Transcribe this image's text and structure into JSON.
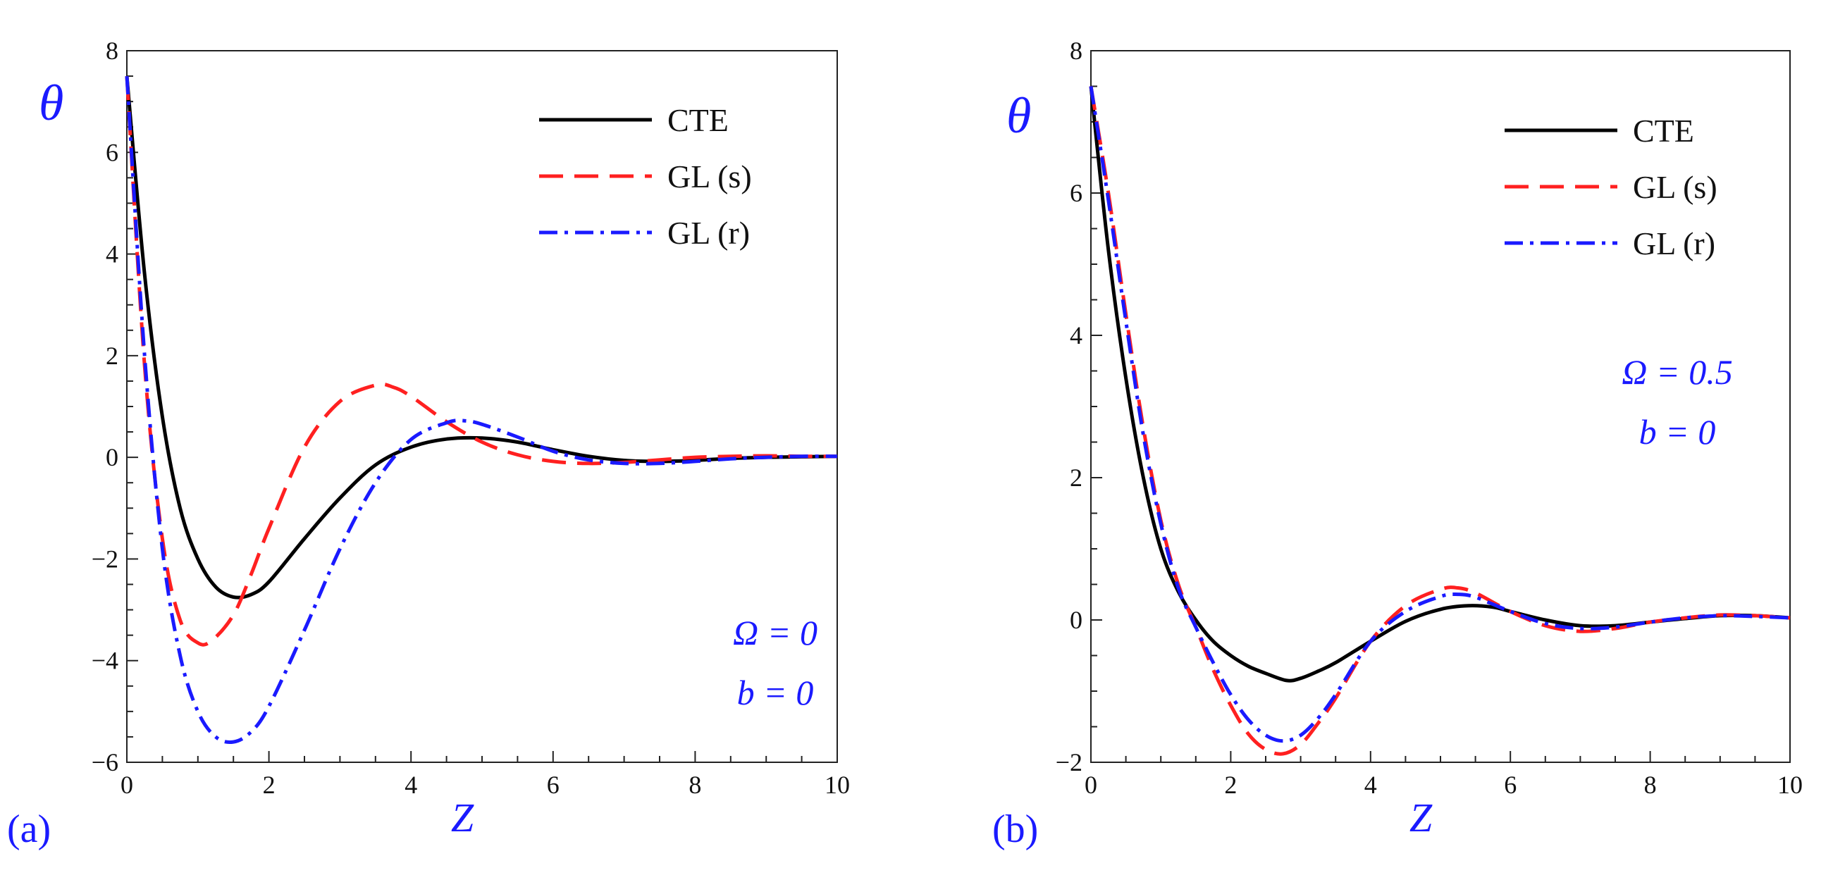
{
  "chart_data": [
    {
      "type": "line",
      "panel_label": "(a)",
      "xlabel": "Z",
      "ylabel": "θ",
      "xlim": [
        0,
        10
      ],
      "ylim": [
        -6,
        8
      ],
      "xticks": [
        "0",
        "2",
        "4",
        "6",
        "8",
        "10"
      ],
      "yticks": [
        "−6",
        "−4",
        "−2",
        "0",
        "2",
        "4",
        "6",
        "8"
      ],
      "legend_position": "top-right",
      "annotations": [
        "Ω = 0",
        "b = 0"
      ],
      "series": [
        {
          "name": "CTE",
          "color": "#000000",
          "style": "solid",
          "x": [
            0,
            0.25,
            0.5,
            0.75,
            1.0,
            1.25,
            1.5,
            1.75,
            2.0,
            2.5,
            3.0,
            3.5,
            4.0,
            4.5,
            5.0,
            5.5,
            6.0,
            6.5,
            7.0,
            7.5,
            8.0,
            8.5,
            9.0,
            9.5,
            10.0
          ],
          "y": [
            7.5,
            3.6,
            0.8,
            -1.0,
            -2.0,
            -2.55,
            -2.75,
            -2.7,
            -2.45,
            -1.6,
            -0.8,
            -0.15,
            0.2,
            0.36,
            0.38,
            0.3,
            0.15,
            0.02,
            -0.06,
            -0.08,
            -0.06,
            -0.02,
            0.0,
            0.01,
            0.02
          ]
        },
        {
          "name": "GL (s)",
          "color": "#ff2020",
          "style": "dashed",
          "x": [
            0,
            0.25,
            0.5,
            0.75,
            1.0,
            1.2,
            1.5,
            1.75,
            2.0,
            2.5,
            3.0,
            3.5,
            3.75,
            4.0,
            4.5,
            5.0,
            5.5,
            6.0,
            6.5,
            7.0,
            7.5,
            8.0,
            8.5,
            9.0,
            9.5,
            10.0
          ],
          "y": [
            7.5,
            1.8,
            -1.6,
            -3.2,
            -3.65,
            -3.6,
            -3.1,
            -2.3,
            -1.4,
            0.2,
            1.1,
            1.42,
            1.38,
            1.2,
            0.7,
            0.3,
            0.05,
            -0.08,
            -0.12,
            -0.1,
            -0.05,
            0.0,
            0.02,
            0.03,
            0.02,
            0.02
          ]
        },
        {
          "name": "GL (r)",
          "color": "#1a1aff",
          "style": "dashdot",
          "x": [
            0,
            0.25,
            0.5,
            0.75,
            1.0,
            1.25,
            1.5,
            1.75,
            2.0,
            2.5,
            3.0,
            3.5,
            4.0,
            4.5,
            4.75,
            5.0,
            5.5,
            6.0,
            6.5,
            7.0,
            7.5,
            8.0,
            8.5,
            9.0,
            9.5,
            10.0
          ],
          "y": [
            7.5,
            2.0,
            -1.8,
            -3.9,
            -5.0,
            -5.5,
            -5.6,
            -5.4,
            -4.9,
            -3.4,
            -1.8,
            -0.5,
            0.35,
            0.68,
            0.72,
            0.65,
            0.4,
            0.12,
            -0.05,
            -0.12,
            -0.12,
            -0.08,
            -0.03,
            0.0,
            0.02,
            0.02
          ]
        }
      ]
    },
    {
      "type": "line",
      "panel_label": "(b)",
      "xlabel": "Z",
      "ylabel": "θ",
      "xlim": [
        0,
        10
      ],
      "ylim": [
        -2,
        8
      ],
      "xticks": [
        "0",
        "2",
        "4",
        "6",
        "8",
        "10"
      ],
      "yticks": [
        "−2",
        "0",
        "2",
        "4",
        "6",
        "8"
      ],
      "legend_position": "top-right",
      "annotations": [
        "Ω = 0.5",
        "b = 0"
      ],
      "series": [
        {
          "name": "CTE",
          "color": "#000000",
          "style": "solid",
          "x": [
            0,
            0.25,
            0.5,
            0.75,
            1.0,
            1.25,
            1.5,
            1.75,
            2.0,
            2.25,
            2.5,
            2.8,
            3.0,
            3.25,
            3.5,
            4.0,
            4.5,
            5.0,
            5.4,
            5.75,
            6.0,
            6.5,
            7.0,
            7.5,
            8.0,
            8.5,
            9.0,
            9.5,
            10.0
          ],
          "y": [
            7.5,
            5.2,
            3.4,
            2.0,
            1.0,
            0.4,
            0.0,
            -0.3,
            -0.5,
            -0.65,
            -0.75,
            -0.85,
            -0.82,
            -0.72,
            -0.6,
            -0.3,
            -0.02,
            0.15,
            0.2,
            0.18,
            0.12,
            0.0,
            -0.08,
            -0.08,
            -0.03,
            0.02,
            0.06,
            0.06,
            0.03
          ]
        },
        {
          "name": "GL (s)",
          "color": "#ff2020",
          "style": "dashed",
          "x": [
            0,
            0.25,
            0.5,
            0.75,
            1.0,
            1.25,
            1.5,
            1.75,
            2.0,
            2.25,
            2.5,
            2.75,
            3.0,
            3.25,
            3.5,
            4.0,
            4.5,
            5.0,
            5.25,
            5.5,
            6.0,
            6.5,
            7.0,
            7.5,
            8.0,
            8.5,
            9.0,
            9.5,
            10.0
          ],
          "y": [
            7.5,
            6.0,
            4.3,
            2.7,
            1.4,
            0.5,
            -0.1,
            -0.7,
            -1.2,
            -1.6,
            -1.82,
            -1.88,
            -1.75,
            -1.45,
            -1.1,
            -0.3,
            0.2,
            0.43,
            0.45,
            0.38,
            0.12,
            -0.08,
            -0.16,
            -0.12,
            -0.03,
            0.03,
            0.07,
            0.06,
            0.03
          ]
        },
        {
          "name": "GL (r)",
          "color": "#1a1aff",
          "style": "dashdot",
          "x": [
            0,
            0.25,
            0.5,
            0.75,
            1.0,
            1.25,
            1.5,
            1.75,
            2.0,
            2.25,
            2.5,
            2.75,
            3.0,
            3.25,
            3.5,
            4.0,
            4.5,
            5.0,
            5.25,
            5.5,
            6.0,
            6.5,
            7.0,
            7.5,
            8.0,
            8.5,
            9.0,
            9.5,
            10.0
          ],
          "y": [
            7.5,
            5.9,
            4.2,
            2.6,
            1.35,
            0.45,
            -0.1,
            -0.6,
            -1.05,
            -1.4,
            -1.62,
            -1.7,
            -1.62,
            -1.38,
            -1.05,
            -0.3,
            0.12,
            0.33,
            0.36,
            0.32,
            0.12,
            -0.05,
            -0.12,
            -0.1,
            -0.03,
            0.03,
            0.06,
            0.05,
            0.03
          ]
        }
      ]
    }
  ]
}
